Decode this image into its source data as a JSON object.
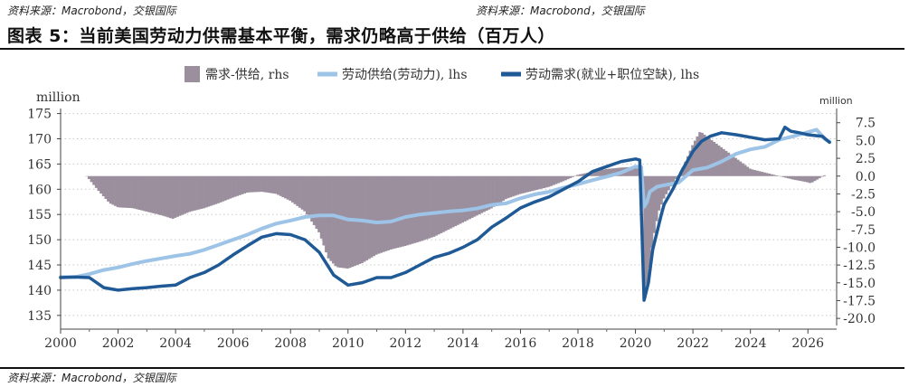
{
  "header": {
    "source_left": "资料来源：Macrobond，交银国际",
    "source_right": "资料来源：Macrobond，交银国际",
    "title": "图表 5：当前美国劳动力供需基本平衡，需求仍略高于供给（百万人）"
  },
  "footer": {
    "source": "资料来源：Macrobond，交银国际"
  },
  "colors": {
    "gap": "#9b8f9e",
    "supply": "#9dc3e6",
    "demand": "#1f5a96",
    "grid": "#c8c8c8"
  },
  "chart_data": {
    "type": "line",
    "y_left_label": "million",
    "y_right_label": "million",
    "ylim_left": [
      133,
      176
    ],
    "ylim_right": [
      -21,
      9.5
    ],
    "xlim": [
      2000,
      2027
    ],
    "left_ticks": [
      135,
      140,
      145,
      150,
      155,
      160,
      165,
      170,
      175
    ],
    "left_tick_labels": [
      "135",
      "140",
      "145",
      "150",
      "155",
      "160",
      "165",
      "170",
      "175"
    ],
    "right_ticks": [
      7.5,
      5,
      2.5,
      0,
      -2.5,
      -5,
      -7.5,
      -10,
      -12.5,
      -15,
      -17.5,
      -20
    ],
    "right_tick_labels": [
      "7.5",
      "5.0",
      "2.5",
      "0.0",
      "-2.5",
      "-5.0",
      "-7.5",
      "-10.0",
      "-12.5",
      "-15.0",
      "-17.5",
      "-20.0"
    ],
    "x_ticks": [
      2000,
      2002,
      2004,
      2006,
      2008,
      2010,
      2012,
      2014,
      2016,
      2018,
      2020,
      2022,
      2024,
      2026
    ],
    "x_tick_labels": [
      "2000",
      "2002",
      "2004",
      "2006",
      "2008",
      "2010",
      "2012",
      "2014",
      "2016",
      "2018",
      "2020",
      "2022",
      "2024",
      "2026"
    ],
    "legend": [
      {
        "label": "需求-供给, rhs",
        "kind": "bar",
        "color": "#9b8f9e"
      },
      {
        "label": "劳动供给(劳动力), lhs",
        "kind": "line",
        "color": "#9dc3e6"
      },
      {
        "label": "劳动需求(就业+职位空缺), lhs",
        "kind": "line",
        "color": "#1f5a96"
      }
    ],
    "series": [
      {
        "name": "劳动供给(劳动力), lhs",
        "axis": "left",
        "points": [
          [
            2000.0,
            142.6
          ],
          [
            2000.5,
            142.6
          ],
          [
            2001.0,
            143.2
          ],
          [
            2001.5,
            144.0
          ],
          [
            2002.0,
            144.5
          ],
          [
            2002.5,
            145.2
          ],
          [
            2003.0,
            145.8
          ],
          [
            2003.5,
            146.3
          ],
          [
            2004.0,
            146.8
          ],
          [
            2004.5,
            147.2
          ],
          [
            2005.0,
            148.0
          ],
          [
            2005.5,
            149.0
          ],
          [
            2006.0,
            150.0
          ],
          [
            2006.5,
            151.0
          ],
          [
            2007.0,
            152.2
          ],
          [
            2007.5,
            153.2
          ],
          [
            2008.0,
            153.8
          ],
          [
            2008.5,
            154.5
          ],
          [
            2009.0,
            154.8
          ],
          [
            2009.5,
            154.8
          ],
          [
            2010.0,
            154.0
          ],
          [
            2010.5,
            153.8
          ],
          [
            2011.0,
            153.4
          ],
          [
            2011.5,
            153.6
          ],
          [
            2012.0,
            154.5
          ],
          [
            2012.5,
            155.0
          ],
          [
            2013.0,
            155.3
          ],
          [
            2013.5,
            155.6
          ],
          [
            2014.0,
            155.8
          ],
          [
            2014.5,
            156.2
          ],
          [
            2015.0,
            156.9
          ],
          [
            2015.5,
            157.2
          ],
          [
            2016.0,
            158.2
          ],
          [
            2016.5,
            159.0
          ],
          [
            2017.0,
            159.5
          ],
          [
            2017.5,
            160.3
          ],
          [
            2018.0,
            161.0
          ],
          [
            2018.5,
            161.8
          ],
          [
            2019.0,
            162.5
          ],
          [
            2019.5,
            163.3
          ],
          [
            2020.0,
            164.5
          ],
          [
            2020.2,
            164.4
          ],
          [
            2020.3,
            156.5
          ],
          [
            2020.4,
            157.5
          ],
          [
            2020.5,
            159.5
          ],
          [
            2020.75,
            160.5
          ],
          [
            2021.0,
            160.8
          ],
          [
            2021.5,
            161.3
          ],
          [
            2022.0,
            163.8
          ],
          [
            2022.5,
            164.3
          ],
          [
            2023.0,
            165.5
          ],
          [
            2023.5,
            167.0
          ],
          [
            2024.0,
            167.9
          ],
          [
            2024.5,
            168.4
          ],
          [
            2025.0,
            169.8
          ],
          [
            2025.5,
            170.5
          ],
          [
            2026.0,
            171.3
          ],
          [
            2026.3,
            171.8
          ],
          [
            2026.6,
            169.9
          ],
          [
            2026.75,
            169.4
          ]
        ]
      },
      {
        "name": "劳动需求(就业+职位空缺), lhs",
        "axis": "left",
        "points": [
          [
            2000.0,
            142.5
          ],
          [
            2000.5,
            142.6
          ],
          [
            2001.0,
            142.5
          ],
          [
            2001.5,
            140.5
          ],
          [
            2002.0,
            140.0
          ],
          [
            2002.5,
            140.3
          ],
          [
            2003.0,
            140.5
          ],
          [
            2003.5,
            140.8
          ],
          [
            2004.0,
            141.0
          ],
          [
            2004.5,
            142.5
          ],
          [
            2005.0,
            143.5
          ],
          [
            2005.5,
            145.0
          ],
          [
            2006.0,
            147.0
          ],
          [
            2006.5,
            148.8
          ],
          [
            2007.0,
            150.5
          ],
          [
            2007.5,
            151.2
          ],
          [
            2008.0,
            151.0
          ],
          [
            2008.5,
            150.0
          ],
          [
            2009.0,
            147.5
          ],
          [
            2009.5,
            143.0
          ],
          [
            2010.0,
            141.0
          ],
          [
            2010.5,
            141.5
          ],
          [
            2011.0,
            142.5
          ],
          [
            2011.5,
            142.5
          ],
          [
            2012.0,
            143.5
          ],
          [
            2012.5,
            145.0
          ],
          [
            2013.0,
            146.5
          ],
          [
            2013.5,
            147.3
          ],
          [
            2014.0,
            148.5
          ],
          [
            2014.5,
            150.0
          ],
          [
            2015.0,
            152.5
          ],
          [
            2015.5,
            154.3
          ],
          [
            2016.0,
            156.3
          ],
          [
            2016.5,
            157.5
          ],
          [
            2017.0,
            158.5
          ],
          [
            2017.5,
            160.0
          ],
          [
            2018.0,
            161.5
          ],
          [
            2018.5,
            163.5
          ],
          [
            2019.0,
            164.5
          ],
          [
            2019.5,
            165.5
          ],
          [
            2020.0,
            166.0
          ],
          [
            2020.15,
            165.8
          ],
          [
            2020.3,
            138.0
          ],
          [
            2020.45,
            141.5
          ],
          [
            2020.6,
            148.0
          ],
          [
            2020.9,
            155.0
          ],
          [
            2021.0,
            157.0
          ],
          [
            2021.3,
            160.0
          ],
          [
            2021.6,
            163.5
          ],
          [
            2022.0,
            167.5
          ],
          [
            2022.3,
            169.5
          ],
          [
            2022.6,
            170.5
          ],
          [
            2023.0,
            171.2
          ],
          [
            2023.5,
            170.8
          ],
          [
            2024.0,
            170.3
          ],
          [
            2024.5,
            169.8
          ],
          [
            2025.0,
            170.0
          ],
          [
            2025.2,
            172.3
          ],
          [
            2025.4,
            171.5
          ],
          [
            2025.7,
            171.2
          ],
          [
            2026.0,
            170.8
          ],
          [
            2026.3,
            170.6
          ],
          [
            2026.5,
            170.5
          ],
          [
            2026.75,
            169.3
          ]
        ]
      },
      {
        "name": "需求-供给, rhs",
        "axis": "right",
        "points": [
          [
            2000.9,
            0.0
          ],
          [
            2001.0,
            -0.5
          ],
          [
            2001.3,
            -2.0
          ],
          [
            2001.7,
            -3.8
          ],
          [
            2002.0,
            -4.4
          ],
          [
            2002.5,
            -4.5
          ],
          [
            2003.0,
            -5.0
          ],
          [
            2003.5,
            -5.5
          ],
          [
            2003.9,
            -6.0
          ],
          [
            2004.2,
            -5.5
          ],
          [
            2004.5,
            -5.0
          ],
          [
            2005.0,
            -4.5
          ],
          [
            2005.5,
            -3.8
          ],
          [
            2006.0,
            -3.0
          ],
          [
            2006.5,
            -2.3
          ],
          [
            2007.0,
            -2.2
          ],
          [
            2007.5,
            -2.5
          ],
          [
            2008.0,
            -3.5
          ],
          [
            2008.5,
            -5.0
          ],
          [
            2009.0,
            -8.0
          ],
          [
            2009.3,
            -11.5
          ],
          [
            2009.6,
            -12.8
          ],
          [
            2010.0,
            -13.0
          ],
          [
            2010.5,
            -12.2
          ],
          [
            2011.0,
            -11.0
          ],
          [
            2011.5,
            -10.3
          ],
          [
            2012.0,
            -9.8
          ],
          [
            2012.5,
            -9.2
          ],
          [
            2013.0,
            -8.5
          ],
          [
            2013.5,
            -7.5
          ],
          [
            2014.0,
            -6.5
          ],
          [
            2014.5,
            -5.5
          ],
          [
            2015.0,
            -4.5
          ],
          [
            2015.5,
            -3.2
          ],
          [
            2016.0,
            -2.5
          ],
          [
            2016.5,
            -2.0
          ],
          [
            2017.0,
            -1.5
          ],
          [
            2017.5,
            -0.7
          ],
          [
            2018.0,
            0.2
          ],
          [
            2018.5,
            0.6
          ],
          [
            2019.0,
            1.0
          ],
          [
            2019.5,
            1.2
          ],
          [
            2020.0,
            1.3
          ],
          [
            2020.2,
            0.8
          ],
          [
            2020.25,
            -5.0
          ],
          [
            2020.3,
            -17.5
          ],
          [
            2020.45,
            -14.0
          ],
          [
            2020.6,
            -9.0
          ],
          [
            2020.8,
            -5.0
          ],
          [
            2021.0,
            -3.0
          ],
          [
            2021.3,
            -1.0
          ],
          [
            2021.6,
            0.8
          ],
          [
            2022.0,
            4.5
          ],
          [
            2022.25,
            6.3
          ],
          [
            2022.5,
            5.5
          ],
          [
            2023.0,
            4.0
          ],
          [
            2023.5,
            2.5
          ],
          [
            2024.0,
            1.0
          ],
          [
            2024.5,
            0.5
          ],
          [
            2025.0,
            0.0
          ],
          [
            2025.5,
            -0.5
          ],
          [
            2025.9,
            -0.8
          ],
          [
            2026.1,
            -1.0
          ],
          [
            2026.4,
            -0.3
          ],
          [
            2026.6,
            0.2
          ]
        ]
      }
    ]
  }
}
